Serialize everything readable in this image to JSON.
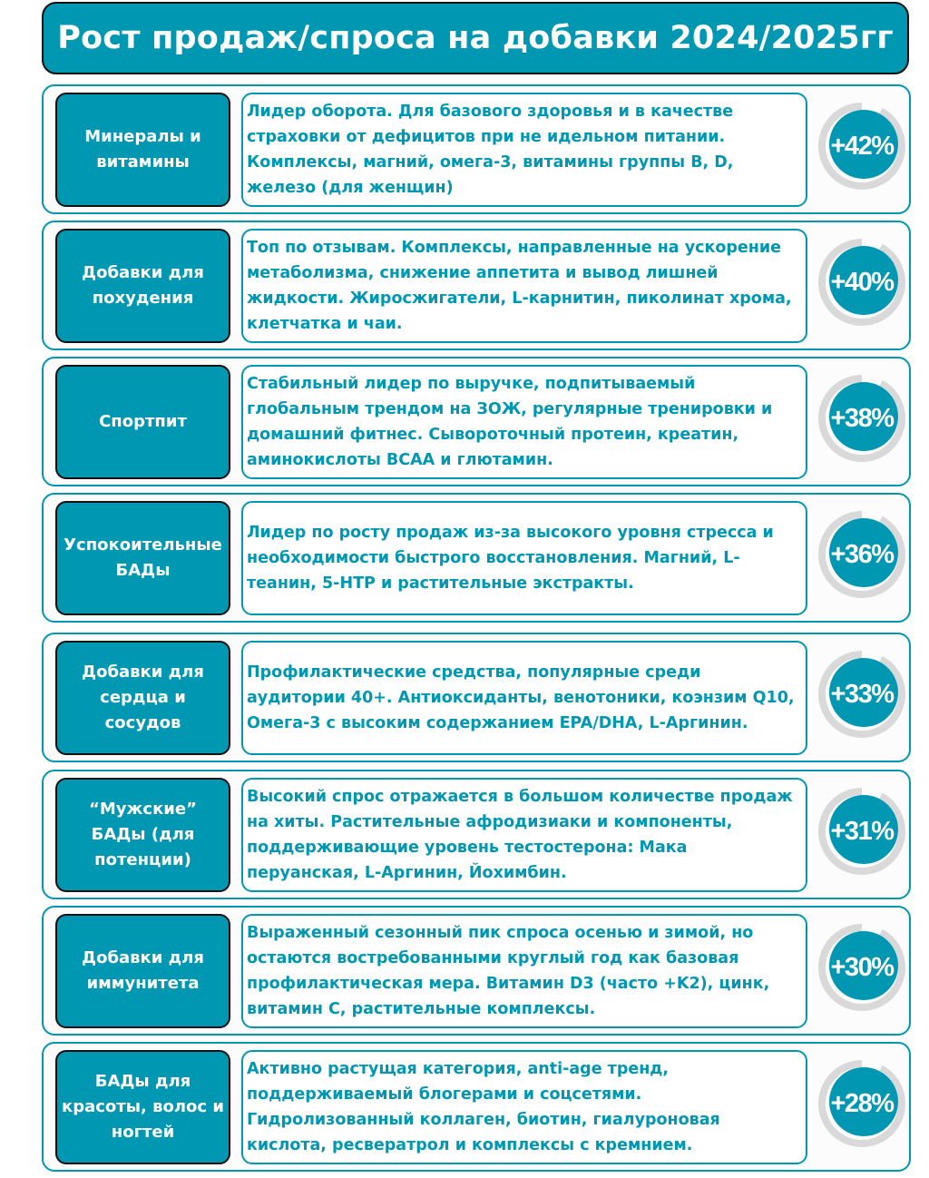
{
  "title": "Рост продаж/спроса на добавки 2024/2025гг",
  "colors": {
    "accent": "#0097b2",
    "ring": "#d9d9d9",
    "border": "#111111"
  },
  "rows": [
    {
      "category": "Минералы и витамины",
      "description": "Лидер оборота. Для базового здоровья и в качестве страховки от дефицитов при не идельном питании. Комплексы, магний, омега-3, витамины группы B, D, железо (для женщин)",
      "growth": "+42%"
    },
    {
      "category": "Добавки для похудения",
      "description": "Топ по отзывам. Комплексы, направленные на ускорение метаболизма, снижение аппетита и вывод лишней жидкости. Жиросжигатели,  L-карнитин, пиколинат хрома, клетчатка и чаи.",
      "growth": "+40%"
    },
    {
      "category": "Спортпит",
      "description": "Стабильный лидер по выручке, подпитываемый глобальным трендом на ЗОЖ, регулярные тренировки и домашний фитнес. Сывороточный протеин, креатин, аминокислоты BCAA и глютамин.",
      "growth": "+38%"
    },
    {
      "category": "Успокоительные БАДы",
      "description": "Лидер по росту продаж из-за высокого уровня стресса и необходимости быстрого восстановления. Магний, L-теанин, 5-HTP и растительные экстракты.",
      "growth": "+36%"
    },
    {
      "category": "Добавки для сердца и сосудов",
      "description": "Профилактические средства, популярные среди аудитории 40+. Антиоксиданты, венотоники, коэнзим Q10, Омега-3 с высоким содержанием EPA/DHA, L-Аргинин.",
      "growth": "+33%"
    },
    {
      "category": "“Мужские” БАДы (для потенции)",
      "description": "Высокий спрос отражается в большом количестве продаж на хиты. Растительные афродизиаки и компоненты, поддерживающие уровень тестостерона: Мака перуанская, L-Аргинин, Йохимбин.",
      "growth": "+31%"
    },
    {
      "category": "Добавки для иммунитета",
      "description": "Выраженный сезонный пик спроса осенью и зимой, но остаются востребованными круглый год как базовая профилактическая мера. Витамин D3 (часто +K2), цинк, витамин C, растительные комплексы.",
      "growth": "+30%"
    },
    {
      "category": "БАДы для красоты, волос и ногтей",
      "description": "Активно растущая категория, anti-age тренд, поддерживаемый блогерами и соцсетями. Гидролизованный коллаген, биотин, гиалуроновая кислота, ресвератрол и комплексы с кремнием.",
      "growth": "+28%"
    }
  ]
}
